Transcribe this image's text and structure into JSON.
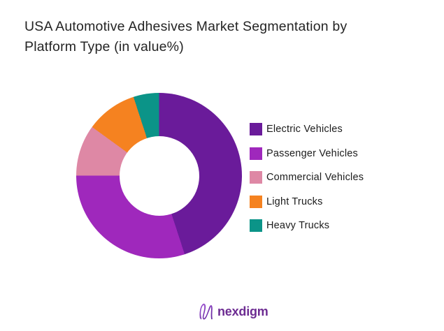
{
  "title": {
    "line1": "USA Automotive Adhesives Market Segmentation by",
    "line2": "Platform Type (in value%)"
  },
  "chart_data": {
    "type": "pie",
    "subtype": "donut",
    "title": "USA Automotive Adhesives Market Segmentation by Platform Type (in value%)",
    "units": "value %",
    "start_angle_deg": 0,
    "direction": "clockwise",
    "inner_radius_ratio": 0.48,
    "legend_position": "right",
    "series": [
      {
        "name": "Electric Vehicles",
        "value": 45,
        "color": "#6a1b9a"
      },
      {
        "name": "Passenger Vehicles",
        "value": 30,
        "color": "#9f28bc"
      },
      {
        "name": "Commercial Vehicles",
        "value": 10,
        "color": "#de88a5"
      },
      {
        "name": "Light Trucks",
        "value": 10,
        "color": "#f58220"
      },
      {
        "name": "Heavy Trucks",
        "value": 5,
        "color": "#0b9488"
      }
    ]
  },
  "footer": {
    "brand": "nexdigm",
    "brand_color": "#6d2c92"
  }
}
